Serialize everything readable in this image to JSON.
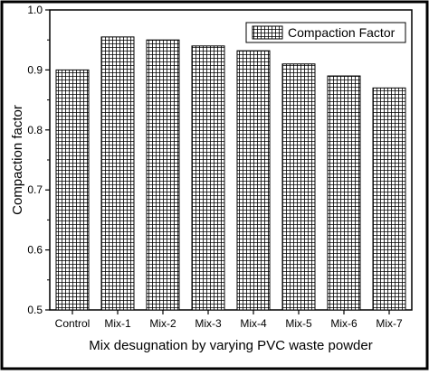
{
  "chart_data": {
    "type": "bar",
    "categories": [
      "Control",
      "Mix-1",
      "Mix-2",
      "Mix-3",
      "Mix-4",
      "Mix-5",
      "Mix-6",
      "Mix-7"
    ],
    "series": [
      {
        "name": "Compaction Factor",
        "values": [
          0.9,
          0.955,
          0.95,
          0.94,
          0.932,
          0.91,
          0.89,
          0.87
        ]
      }
    ],
    "xlabel": "Mix desugnation by varying PVC waste powder",
    "ylabel": "Compaction factor",
    "ylim": [
      0.5,
      1.0
    ],
    "yticks": [
      "0.5",
      "0.6",
      "0.7",
      "0.8",
      "0.9",
      "1.0"
    ],
    "legend_position": "top-right",
    "grid": false,
    "bar_pattern": "crosshatch-grid"
  }
}
